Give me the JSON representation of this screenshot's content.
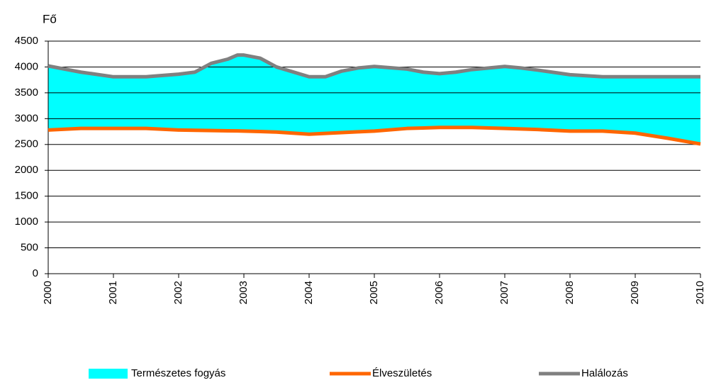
{
  "chart_data": {
    "type": "line",
    "y_label": "Fő",
    "x": [
      2000,
      2000.5,
      2001,
      2001.5,
      2002,
      2002.25,
      2002.5,
      2002.75,
      2002.9,
      2003,
      2003.25,
      2003.5,
      2004,
      2004.25,
      2004.5,
      2004.75,
      2005,
      2005.5,
      2005.75,
      2006,
      2006.25,
      2006.5,
      2007,
      2007.25,
      2007.5,
      2008,
      2008.5,
      2009,
      2009.5,
      2010
    ],
    "series": [
      {
        "name": "Természetes fogyás",
        "color": "#00ffff",
        "fill_between": true
      },
      {
        "name": "Élveszületés",
        "color": "#ff6600",
        "values": [
          2780,
          2810,
          2810,
          2810,
          2780,
          2775,
          2770,
          2765,
          2762,
          2760,
          2750,
          2740,
          2700,
          2715,
          2730,
          2745,
          2760,
          2810,
          2820,
          2830,
          2830,
          2830,
          2810,
          2800,
          2790,
          2760,
          2760,
          2720,
          2620,
          2510
        ]
      },
      {
        "name": "Halálozás",
        "color": "#808080",
        "values": [
          4020,
          3900,
          3810,
          3810,
          3860,
          3900,
          4070,
          4150,
          4230,
          4230,
          4170,
          4000,
          3810,
          3810,
          3920,
          3980,
          4010,
          3960,
          3900,
          3870,
          3900,
          3950,
          4010,
          3980,
          3940,
          3850,
          3810,
          3810,
          3810,
          3810
        ]
      }
    ],
    "xlim": [
      2000,
      2010
    ],
    "xticks": [
      2000,
      2001,
      2002,
      2003,
      2004,
      2005,
      2006,
      2007,
      2008,
      2009,
      2010
    ],
    "ylim": [
      0,
      4500
    ],
    "yticks": [
      0,
      500,
      1000,
      1500,
      2000,
      2500,
      3000,
      3500,
      4000,
      4500
    ],
    "grid": true,
    "legend": "bottom"
  }
}
